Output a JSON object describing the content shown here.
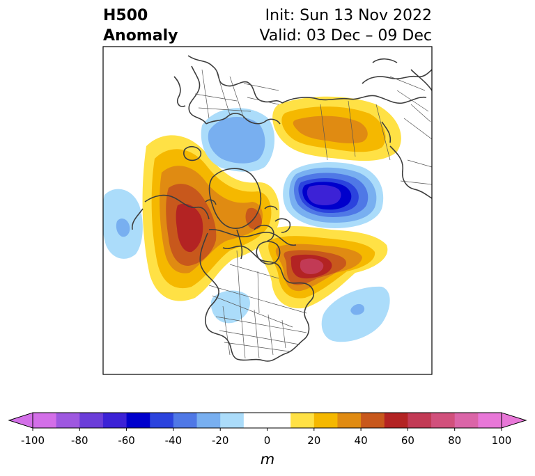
{
  "title": {
    "line1": "H500",
    "line2": "Anomaly",
    "init": "Init: Sun 13 Nov 2022",
    "valid": "Valid: 03 Dec – 09 Dec"
  },
  "colorbar": {
    "min": -100,
    "max": 100,
    "step": 10,
    "unit": "m",
    "tick_labels": [
      "-100",
      "-80",
      "-60",
      "-40",
      "-20",
      "0",
      "20",
      "40",
      "60",
      "80",
      "100"
    ],
    "colors": [
      "#d36fe8",
      "#9e58e0",
      "#6b3dd9",
      "#3c22d6",
      "#0000cc",
      "#2b43dd",
      "#4f78e6",
      "#78aff0",
      "#abdcfa",
      "#ffffff",
      "#ffffff",
      "#ffe145",
      "#f5b800",
      "#e08b12",
      "#c8581c",
      "#b32323",
      "#c23a55",
      "#d1507c",
      "#db65a8",
      "#e877d8"
    ]
  },
  "map": {
    "projection": "polar-stereographic, north pole",
    "field": "500 hPa geopotential height anomaly",
    "features": [
      {
        "kind": "positive-anomaly",
        "name": "western north america ridge",
        "peak": "+50 to +60 m"
      },
      {
        "kind": "positive-anomaly",
        "name": "hudson bay / labrador ridge",
        "peak": "+60 to +70 m"
      },
      {
        "kind": "positive-anomaly",
        "name": "northern russia ridge",
        "peak": "+30 to +40 m"
      },
      {
        "kind": "negative-anomaly",
        "name": "arctic ocean trough",
        "peak": "-60 to -70 m"
      },
      {
        "kind": "negative-anomaly",
        "name": "scandinavia trough",
        "peak": "-20 to -30 m"
      },
      {
        "kind": "negative-anomaly",
        "name": "north pacific trough",
        "peak": "-20 to -30 m"
      },
      {
        "kind": "negative-anomaly",
        "name": "central north atlantic trough",
        "peak": "-20 to -30 m"
      },
      {
        "kind": "negative-anomaly",
        "name": "eastern us trough",
        "peak": "-10 to -20 m"
      }
    ]
  }
}
